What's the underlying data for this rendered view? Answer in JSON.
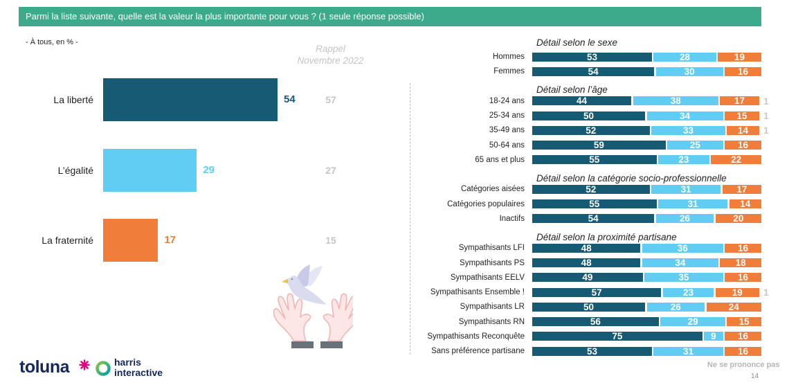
{
  "header": {
    "title": "Parmi la liste suivante, quelle est la valeur la plus importante pour vous ? (1 seule réponse possible)"
  },
  "base_note": "- À tous, en % -",
  "rappel": {
    "line1": "Rappel",
    "line2": "Novembre 2022"
  },
  "colors": {
    "header": "#3daa8b",
    "liberte": "#175a73",
    "egalite": "#62cdf3",
    "fraternite": "#f07d3a",
    "rappel": "#c6c6c6"
  },
  "chart_data": [
    {
      "type": "bar",
      "orientation": "horizontal",
      "categories": [
        "La liberté",
        "L’égalité",
        "La fraternité"
      ],
      "values": [
        54,
        29,
        17
      ],
      "rappel_values": [
        57,
        27,
        15
      ],
      "xlim": [
        0,
        100
      ]
    },
    {
      "type": "bar",
      "orientation": "horizontal",
      "stacked": true,
      "xlim": [
        0,
        100
      ],
      "series_colors": [
        "#175a73",
        "#62cdf3",
        "#f07d3a"
      ],
      "nsp_label": "Ne se prononce pas",
      "groups": [
        {
          "heading": "Détail selon le sexe",
          "rows": [
            {
              "label": "Hommes",
              "values": [
                53,
                28,
                19
              ]
            },
            {
              "label": "Femmes",
              "values": [
                54,
                30,
                16
              ]
            }
          ]
        },
        {
          "heading": "Détail selon l’âge",
          "rows": [
            {
              "label": "18-24 ans",
              "values": [
                44,
                38,
                17
              ],
              "nsp": 1
            },
            {
              "label": "25-34 ans",
              "values": [
                50,
                34,
                15
              ],
              "nsp": 1
            },
            {
              "label": "35-49 ans",
              "values": [
                52,
                33,
                14
              ],
              "nsp": 1
            },
            {
              "label": "50-64 ans",
              "values": [
                59,
                25,
                16
              ]
            },
            {
              "label": "65 ans et plus",
              "values": [
                55,
                23,
                22
              ]
            }
          ]
        },
        {
          "heading": "Détail selon la catégorie socio-professionnelle",
          "rows": [
            {
              "label": "Catégories aisées",
              "values": [
                52,
                31,
                17
              ]
            },
            {
              "label": "Catégories populaires",
              "values": [
                55,
                31,
                14
              ]
            },
            {
              "label": "Inactifs",
              "values": [
                54,
                26,
                20
              ]
            }
          ]
        },
        {
          "heading": "Détail selon la proximité partisane",
          "rows": [
            {
              "label": "Sympathisants LFI",
              "values": [
                48,
                36,
                16
              ]
            },
            {
              "label": "Sympathisants PS",
              "values": [
                48,
                34,
                18
              ]
            },
            {
              "label": "Sympathisants EELV",
              "values": [
                49,
                35,
                16
              ]
            },
            {
              "label": "Sympathisants Ensemble !",
              "values": [
                57,
                23,
                19
              ],
              "nsp": 1
            },
            {
              "label": "Sympathisants LR",
              "values": [
                50,
                26,
                24
              ]
            },
            {
              "label": "Sympathisants RN",
              "values": [
                56,
                29,
                15
              ]
            },
            {
              "label": "Sympathisants Reconquête",
              "values": [
                75,
                9,
                16
              ]
            },
            {
              "label": "Sans préférence partisane",
              "values": [
                53,
                31,
                16
              ]
            }
          ]
        }
      ]
    }
  ],
  "logos": {
    "toluna": "toluna",
    "harris_line1": "harris",
    "harris_line2": "interactive"
  },
  "footer": {
    "page_number": "14"
  }
}
